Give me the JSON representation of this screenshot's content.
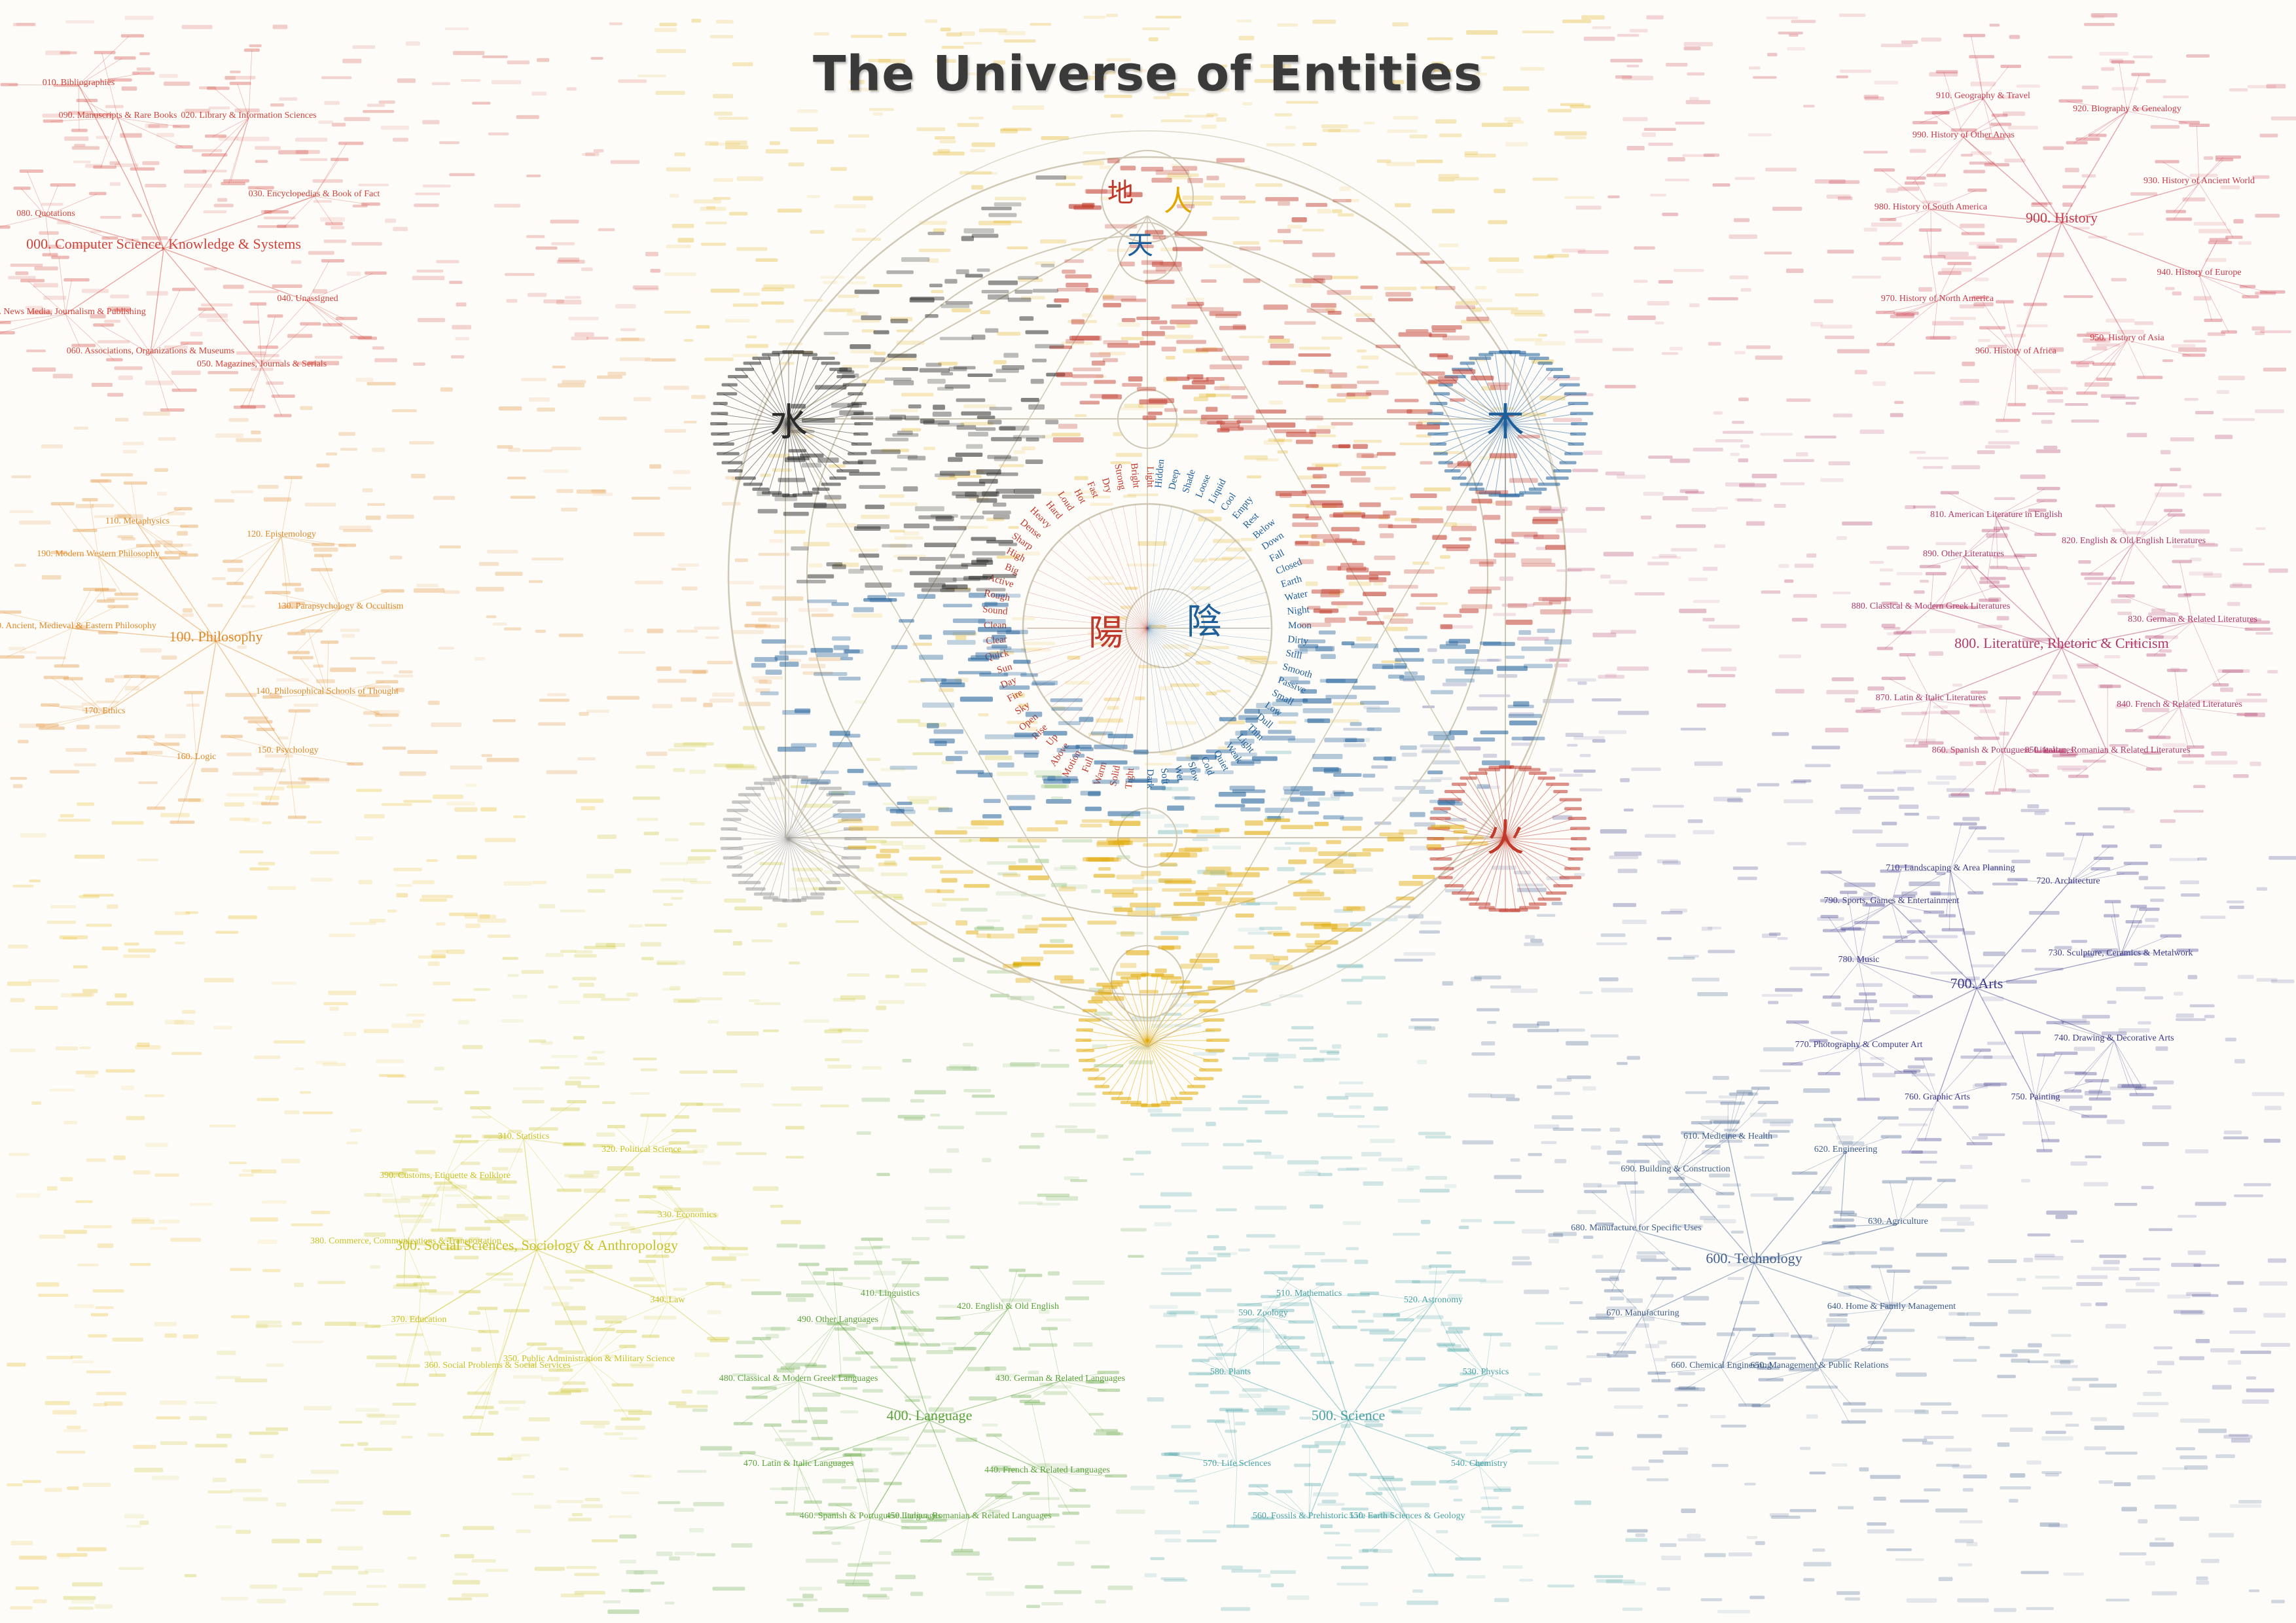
{
  "title": "The Universe of Entities",
  "colors": {
    "red": "#c0392b",
    "blue": "#1f5f99",
    "black": "#2b2b2b",
    "gray": "#9a9a9a",
    "gold": "#e0a800",
    "grid": "#cfc8b4",
    "c000": "#d0433a",
    "c100": "#e08a2a",
    "c200": "#e9b91c",
    "c300": "#c9c226",
    "c400": "#5ba33a",
    "c500": "#49a2a5",
    "c600": "#3f5e8c",
    "c700": "#3b3a8a",
    "c800": "#b03a6a",
    "c900": "#c93a4a"
  },
  "center": {
    "heaven": "天",
    "earth": "地",
    "human": "人",
    "water": "水",
    "wood": "木",
    "fire": "火",
    "yang": "陽",
    "yin": "陰"
  },
  "rings": {
    "yang_words": [
      "Light",
      "Bright",
      "Strong",
      "Dry",
      "Fast",
      "Hot",
      "Loud",
      "Hard",
      "Heavy",
      "Dense",
      "Sharp",
      "High",
      "Big",
      "Active",
      "Rough",
      "Sound",
      "Clean",
      "Clear",
      "Quick",
      "Sun",
      "Day",
      "Fire",
      "Sky",
      "Open",
      "Rise",
      "Up",
      "Above",
      "Motion",
      "Full",
      "Warm",
      "Solid",
      "Tight"
    ],
    "yin_words": [
      "Dark",
      "Soft",
      "Wet",
      "Slow",
      "Cold",
      "Quiet",
      "Weak",
      "Light",
      "Thin",
      "Dull",
      "Low",
      "Small",
      "Passive",
      "Smooth",
      "Still",
      "Dirty",
      "Moon",
      "Night",
      "Water",
      "Earth",
      "Closed",
      "Fall",
      "Down",
      "Below",
      "Rest",
      "Empty",
      "Cool",
      "Liquid",
      "Loose",
      "Shade",
      "Deep",
      "Hidden"
    ]
  },
  "categories": [
    {
      "id": "000",
      "label": "000. Computer Science, Knowledge & Systems",
      "color": "c000",
      "subs": [
        "010. Bibliographies",
        "020. Library & Information Sciences",
        "030. Encyclopedias & Book of Fact",
        "040. Unassigned",
        "050. Magazines, Journals & Serials",
        "060. Associations, Organizations & Museums",
        "070. News Media, Journalism & Publishing",
        "080. Quotations",
        "090. Manuscripts & Rare Books"
      ]
    },
    {
      "id": "100",
      "label": "100. Philosophy",
      "color": "c100",
      "subs": [
        "110. Metaphysics",
        "120. Epistemology",
        "130. Parapsychology & Occultism",
        "140. Philosophical Schools of Thought",
        "150. Psychology",
        "160. Logic",
        "170. Ethics",
        "180. Ancient, Medieval & Eastern Philosophy",
        "190. Modern Western Philosophy"
      ]
    },
    {
      "id": "300",
      "label": "300. Social Sciences, Sociology & Anthropology",
      "color": "c300",
      "subs": [
        "310. Statistics",
        "320. Political Science",
        "330. Economics",
        "340. Law",
        "350. Public Administration & Military Science",
        "360. Social Problems & Social Services",
        "370. Education",
        "380. Commerce, Communications & Transportation",
        "390. Customs, Etiquette & Folklore"
      ]
    },
    {
      "id": "400",
      "label": "400. Language",
      "color": "c400",
      "subs": [
        "410. Linguistics",
        "420. English & Old English",
        "430. German & Related Languages",
        "440. French & Related Languages",
        "450. Italian, Romanian & Related Languages",
        "460. Spanish & Portuguese Languages",
        "470. Latin & Italic Languages",
        "480. Classical & Modern Greek Languages",
        "490. Other Languages"
      ]
    },
    {
      "id": "500",
      "label": "500. Science",
      "color": "c500",
      "subs": [
        "510. Mathematics",
        "520. Astronomy",
        "530. Physics",
        "540. Chemistry",
        "550. Earth Sciences & Geology",
        "560. Fossils & Prehistoric Life",
        "570. Life Sciences",
        "580. Plants",
        "590. Zoology"
      ]
    },
    {
      "id": "600",
      "label": "600. Technology",
      "color": "c600",
      "subs": [
        "610. Medicine & Health",
        "620. Engineering",
        "630. Agriculture",
        "640. Home & Family Management",
        "650. Management & Public Relations",
        "660. Chemical Engineering",
        "670. Manufacturing",
        "680. Manufacture for Specific Uses",
        "690. Building & Construction"
      ]
    },
    {
      "id": "700",
      "label": "700. Arts",
      "color": "c700",
      "subs": [
        "710. Landscaping & Area Planning",
        "720. Architecture",
        "730. Sculpture, Ceramics & Metalwork",
        "740. Drawing & Decorative Arts",
        "750. Painting",
        "760. Graphic Arts",
        "770. Photography & Computer Art",
        "780. Music",
        "790. Sports, Games & Entertainment"
      ]
    },
    {
      "id": "800",
      "label": "800. Literature, Rhetoric & Criticism",
      "color": "c800",
      "subs": [
        "810. American Literature in English",
        "820. English & Old English Literatures",
        "830. German & Related Literatures",
        "840. French & Related Literatures",
        "850. Italian, Romanian & Related Literatures",
        "860. Spanish & Portuguese Literatures",
        "870. Latin & Italic Literatures",
        "880. Classical & Modern Greek Literatures",
        "890. Other Literatures"
      ]
    },
    {
      "id": "900",
      "label": "900. History",
      "color": "c900",
      "subs": [
        "910. Geography & Travel",
        "920. Biography & Genealogy",
        "930. History of Ancient World",
        "940. History of Europe",
        "950. History of Asia",
        "960. History of Africa",
        "970. History of North America",
        "980. History of South America",
        "990. History of Other Areas"
      ]
    }
  ]
}
